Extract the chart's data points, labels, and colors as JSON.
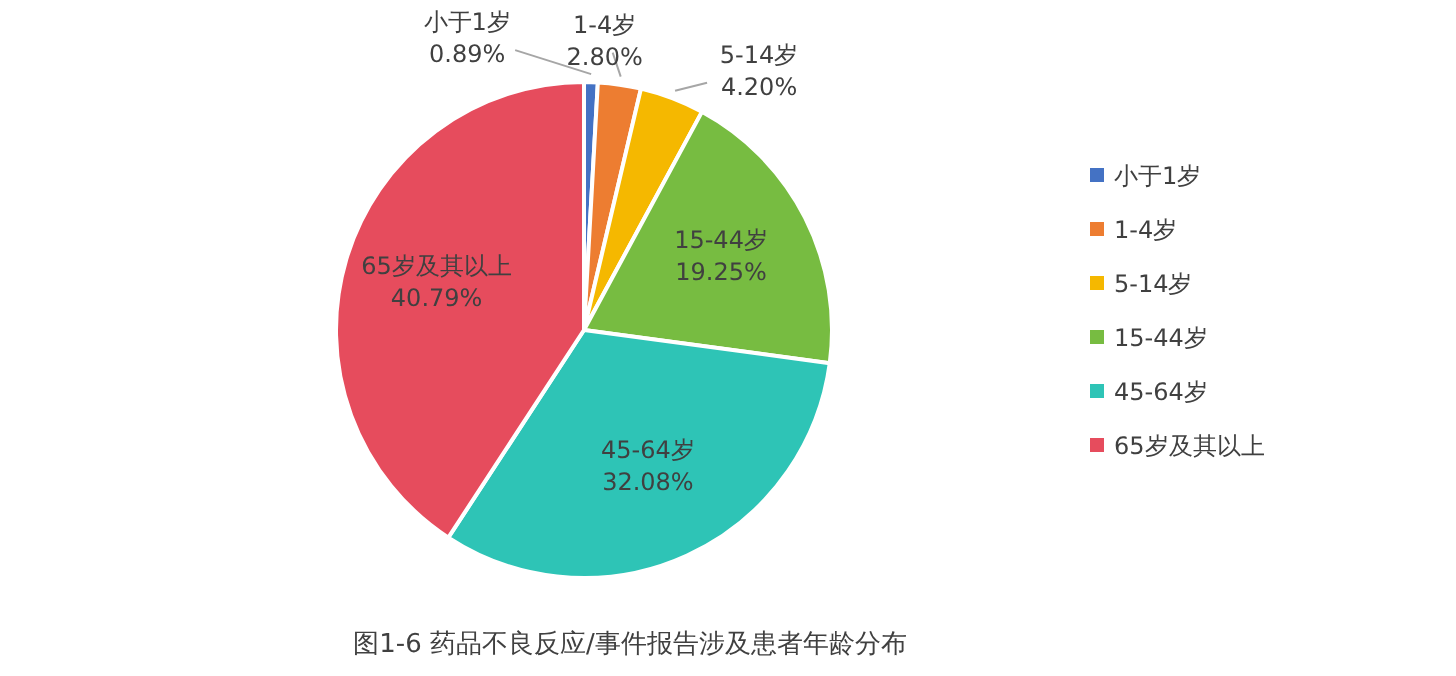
{
  "chart_data": {
    "type": "pie",
    "title": "图1-6 药品不良反应/事件报告涉及患者年龄分布",
    "categories": [
      "小于1岁",
      "1-4岁",
      "5-14岁",
      "15-44岁",
      "45-64岁",
      "65岁及其以上"
    ],
    "values": [
      0.89,
      2.8,
      4.2,
      19.25,
      32.08,
      40.79
    ],
    "value_labels": [
      "0.89%",
      "2.80%",
      "4.20%",
      "19.25%",
      "32.08%",
      "40.79%"
    ],
    "colors": [
      "#4472c4",
      "#ed7d31",
      "#f5b800",
      "#77bc41",
      "#2ec4b6",
      "#e64c5d"
    ],
    "legend": "right"
  }
}
